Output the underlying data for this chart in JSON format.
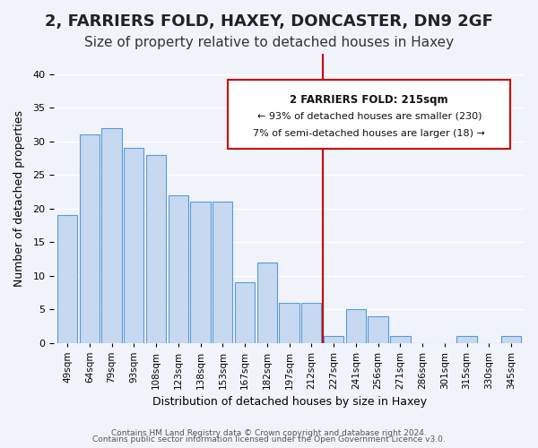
{
  "title": "2, FARRIERS FOLD, HAXEY, DONCASTER, DN9 2GF",
  "subtitle": "Size of property relative to detached houses in Haxey",
  "xlabel": "Distribution of detached houses by size in Haxey",
  "ylabel": "Number of detached properties",
  "bar_labels": [
    "49sqm",
    "64sqm",
    "79sqm",
    "93sqm",
    "108sqm",
    "123sqm",
    "138sqm",
    "153sqm",
    "167sqm",
    "182sqm",
    "197sqm",
    "212sqm",
    "227sqm",
    "241sqm",
    "256sqm",
    "271sqm",
    "286sqm",
    "301sqm",
    "315sqm",
    "330sqm",
    "345sqm"
  ],
  "bar_heights": [
    19,
    31,
    32,
    29,
    28,
    22,
    21,
    21,
    9,
    12,
    6,
    6,
    1,
    5,
    4,
    1,
    0,
    0,
    1,
    0,
    1
  ],
  "bar_color": "#c6d9f0",
  "bar_edge_color": "#5b9bd5",
  "vline_x": 11,
  "vline_color": "#cc0000",
  "annotation_title": "2 FARRIERS FOLD: 215sqm",
  "annotation_line1": "← 93% of detached houses are smaller (230)",
  "annotation_line2": "7% of semi-detached houses are larger (18) →",
  "annotation_box_color": "#ffffff",
  "annotation_box_edge": "#cc0000",
  "ylim": [
    0,
    43
  ],
  "yticks": [
    0,
    5,
    10,
    15,
    20,
    25,
    30,
    35,
    40
  ],
  "footnote1": "Contains HM Land Registry data © Crown copyright and database right 2024.",
  "footnote2": "Contains public sector information licensed under the Open Government Licence v3.0.",
  "bg_color": "#f0f4fa",
  "grid_color": "#ffffff",
  "title_fontsize": 13,
  "subtitle_fontsize": 11
}
